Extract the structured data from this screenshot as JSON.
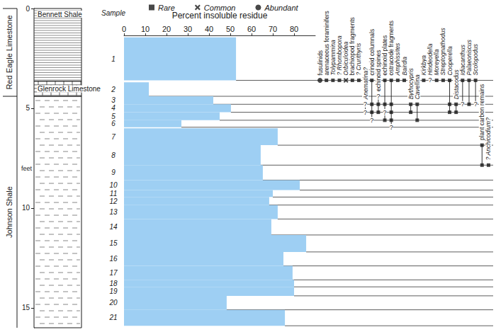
{
  "chart_data": {
    "type": "bar",
    "orientation": "horizontal",
    "xlabel": "Percent insoluble residue",
    "xlim": [
      0,
      90
    ],
    "xticks": [
      0,
      10,
      20,
      30,
      40,
      50,
      60,
      70,
      80
    ],
    "ylabel": "feet",
    "ylim": [
      0,
      16
    ],
    "yticks": [
      0,
      5,
      10,
      15
    ],
    "color": "#9ecff3",
    "sample_label": "Sample",
    "samples": [
      {
        "name": "1",
        "top": 1.45,
        "base": 3.6,
        "value": 52.7
      },
      {
        "name": "2",
        "top": 3.7,
        "base": 4.4,
        "value": 11.7
      },
      {
        "name": "3",
        "top": 4.4,
        "base": 4.8,
        "value": 42
      },
      {
        "name": "4",
        "top": 4.8,
        "base": 5.2,
        "value": 50.3
      },
      {
        "name": "5",
        "top": 5.2,
        "base": 5.6,
        "value": 45
      },
      {
        "name": "6",
        "top": 5.6,
        "base": 5.95,
        "value": 27
      },
      {
        "name": "7",
        "top": 6.0,
        "base": 6.85,
        "value": 72.3
      },
      {
        "name": "8",
        "top": 6.85,
        "base": 7.85,
        "value": 64.3
      },
      {
        "name": "9",
        "top": 7.85,
        "base": 8.6,
        "value": 65.3
      },
      {
        "name": "10",
        "top": 8.6,
        "base": 9.1,
        "value": 82.7
      },
      {
        "name": "11",
        "top": 9.1,
        "base": 9.45,
        "value": 70
      },
      {
        "name": "12",
        "top": 9.45,
        "base": 9.85,
        "value": 68.3
      },
      {
        "name": "13",
        "top": 9.85,
        "base": 10.55,
        "value": 72.3
      },
      {
        "name": "14",
        "top": 10.55,
        "base": 11.35,
        "value": 69.3
      },
      {
        "name": "15",
        "top": 11.35,
        "base": 12.2,
        "value": 85.7
      },
      {
        "name": "16",
        "top": 12.2,
        "base": 12.9,
        "value": 75
      },
      {
        "name": "17",
        "top": 12.9,
        "base": 13.6,
        "value": 79.3
      },
      {
        "name": "18",
        "top": 13.6,
        "base": 13.95,
        "value": 80
      },
      {
        "name": "19",
        "top": 13.95,
        "base": 14.4,
        "value": 80
      },
      {
        "name": "20",
        "top": 14.4,
        "base": 15.1,
        "value": 48.3
      },
      {
        "name": "21",
        "top": 15.1,
        "base": 15.9,
        "value": 75.7
      }
    ],
    "formations": [
      {
        "name": "Red Eagle Limestone",
        "top": 0,
        "base": 4.4
      },
      {
        "name": "Johnson Shale",
        "top": 4.4,
        "base": 16
      }
    ],
    "units": [
      {
        "name": "Bennett Shale",
        "top": 0,
        "base": 3.65
      },
      {
        "name": "Glenrock Limestone",
        "top": 3.65,
        "base": 4.4
      }
    ],
    "abundance": [
      "Rare",
      "Common",
      "Abundant"
    ],
    "taxa": [
      {
        "name": "fusulinids",
        "occurrences": [
          [
            "1",
            "Abundant"
          ]
        ]
      },
      {
        "name": "arenaceous foraminifers",
        "occurrences": [
          [
            "1",
            "Rare"
          ]
        ]
      },
      {
        "name": "Tolypammina",
        "occurrences": [
          [
            "1",
            "Rare"
          ]
        ]
      },
      {
        "name": "? Rhombopora",
        "occurrences": [
          [
            "1",
            "Rare"
          ]
        ]
      },
      {
        "name": "Orbiculoidea",
        "occurrences": [
          [
            "1",
            "Common"
          ]
        ]
      },
      {
        "name": "brachiopod fragments",
        "occurrences": [
          [
            "1",
            "Rare"
          ]
        ]
      },
      {
        "name": "? Crurithyris",
        "occurrences": [
          [
            "1",
            "Rare"
          ]
        ]
      },
      {
        "name": "Anematina?",
        "occurrences": [
          [
            "3",
            "?"
          ],
          [
            "4",
            "?"
          ]
        ]
      },
      {
        "name": "crinoid columnals",
        "occurrences": [
          [
            "1",
            "Rare"
          ],
          [
            "3",
            "Rare"
          ],
          [
            "4",
            "Rare"
          ],
          [
            "5",
            "?"
          ]
        ]
      },
      {
        "name": "echinoid spines",
        "occurrences": [
          [
            "2",
            "?"
          ],
          [
            "3",
            "Rare"
          ],
          [
            "4",
            "Rare"
          ]
        ]
      },
      {
        "name": "echinoid plates",
        "occurrences": [
          [
            "1",
            "Rare"
          ],
          [
            "3",
            "Rare"
          ],
          [
            "4",
            "?"
          ],
          [
            "5",
            "Rare"
          ]
        ]
      },
      {
        "name": "ostracode fragments",
        "occurrences": [
          [
            "1",
            "Rare"
          ],
          [
            "3",
            "Rare"
          ],
          [
            "4",
            "Rare"
          ],
          [
            "5",
            "Rare"
          ],
          [
            "6",
            "?"
          ]
        ]
      },
      {
        "name": "Amphissites",
        "occurrences": [
          [
            "1",
            "Rare"
          ]
        ]
      },
      {
        "name": "Bairdia",
        "occurrences": [
          [
            "1",
            "Rare"
          ]
        ]
      },
      {
        "name": "Bythocypris",
        "occurrences": [
          [
            "3",
            "Rare"
          ],
          [
            "4",
            "Rare"
          ]
        ]
      },
      {
        "name": "Cavellina",
        "occurrences": [
          [
            "3",
            "Rare"
          ],
          [
            "5",
            "Rare"
          ]
        ]
      },
      {
        "name": "Kirkbya",
        "occurrences": [
          [
            "1",
            "Rare"
          ]
        ]
      },
      {
        "name": "Hindeodella",
        "occurrences": [
          [
            "1",
            "?"
          ]
        ]
      },
      {
        "name": "Moreyella",
        "occurrences": [
          [
            "1",
            "Rare"
          ]
        ]
      },
      {
        "name": "Streptognathodus",
        "occurrences": [
          [
            "1",
            "Rare"
          ]
        ]
      },
      {
        "name": "Cooperella",
        "occurrences": [
          [
            "1",
            "Rare"
          ],
          [
            "3",
            "Rare"
          ],
          [
            "4",
            "Rare"
          ]
        ]
      },
      {
        "name": "Distacodus",
        "occurrences": [
          [
            "3",
            "Rare"
          ],
          [
            "4",
            "Rare"
          ]
        ]
      },
      {
        "name": "Idiacanthus",
        "occurrences": [
          [
            "1",
            "Rare"
          ],
          [
            "3",
            "?"
          ]
        ]
      },
      {
        "name": "Palaeoniscus",
        "occurrences": [
          [
            "1",
            "Rare"
          ],
          [
            "3",
            "Rare"
          ]
        ]
      },
      {
        "name": "Scolopodus",
        "occurrences": [
          [
            "1",
            "Rare"
          ],
          [
            "3",
            "?"
          ]
        ]
      },
      {
        "name": "plant carbon remains",
        "occurrences": [
          [
            "7",
            "Rare"
          ],
          [
            "8",
            "Rare"
          ]
        ]
      },
      {
        "name": "? Anchicodium?",
        "occurrences": [
          [
            "8",
            "Rare"
          ]
        ]
      }
    ]
  }
}
